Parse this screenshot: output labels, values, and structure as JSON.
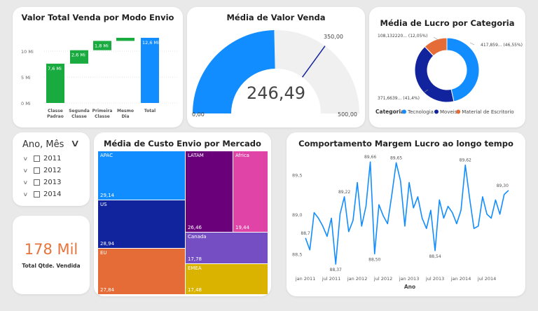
{
  "colors": {
    "blue": "#118dff",
    "green": "#1aab40",
    "gauge_gray": "#f0f0f0",
    "navy": "#12239e",
    "orange": "#e66c37",
    "kpi": "#e8743b"
  },
  "waterfall": {
    "title": "Valor Total Venda por Modo Envio",
    "chart_data": {
      "type": "bar",
      "subtype": "waterfall",
      "categories": [
        [
          "Classe",
          "Padrao"
        ],
        [
          "Segunda",
          "Classe"
        ],
        [
          "Primeira",
          "Classe"
        ],
        [
          "Mesmo",
          "Dia"
        ],
        [
          "Total"
        ]
      ],
      "values": [
        7.6,
        2.6,
        1.8,
        0.6,
        12.6
      ],
      "data_labels": [
        "7,6 Mi",
        "2,6 Mi",
        "1,8 Mi",
        "",
        "12,6 Mi"
      ],
      "y_ticks": [
        "0 Mi",
        "5 Mi",
        "10 Mi"
      ],
      "ylim": [
        0,
        13
      ]
    }
  },
  "gauge": {
    "title": "Média de Valor Venda",
    "value": 246.49,
    "value_label": "246,49",
    "min": 0,
    "max": 500,
    "target": 350,
    "min_label": "0,00",
    "max_label": "500,00",
    "target_label": "350,00"
  },
  "donut": {
    "title": "Média de Lucro por Categoria",
    "legend_title": "Categoria",
    "chart_data": {
      "type": "pie",
      "subtype": "donut",
      "series": [
        {
          "name": "Tecnologia",
          "value": 417859,
          "label": "417,859... (46,55%)",
          "color": "#118dff"
        },
        {
          "name": "Moveis",
          "value": 371663.9,
          "label": "371,6639... (41,4%)",
          "color": "#12239e"
        },
        {
          "name": "Material de Escritorio",
          "value": 108132.2,
          "label": "108,132220... (12,05%)",
          "color": "#e66c37"
        }
      ]
    }
  },
  "slicer": {
    "title": "Ano, Mês",
    "items": [
      "2011",
      "2012",
      "2013",
      "2014"
    ]
  },
  "kpi": {
    "value": "178 Mil",
    "label": "Total Qtde. Vendida"
  },
  "treemap": {
    "title": "Média de Custo Envio por Mercado",
    "chart_data": {
      "type": "heatmap",
      "subtype": "treemap",
      "series": [
        {
          "name": "APAC",
          "value": 29.14,
          "label": "29,14",
          "color": "#118dff"
        },
        {
          "name": "US",
          "value": 28.94,
          "label": "28,94",
          "color": "#12239e"
        },
        {
          "name": "EU",
          "value": 27.84,
          "label": "27,84",
          "color": "#e66c37"
        },
        {
          "name": "LATAM",
          "value": 26.46,
          "label": "26,46",
          "color": "#6b007b"
        },
        {
          "name": "Africa",
          "value": 19.44,
          "label": "19,44",
          "color": "#e044a7"
        },
        {
          "name": "Canada",
          "value": 17.78,
          "label": "17,78",
          "color": "#744ec2"
        },
        {
          "name": "EMEA",
          "value": 17.48,
          "label": "17,48",
          "color": "#d9b300"
        }
      ]
    }
  },
  "line": {
    "title": "Comportamento Margem Lucro ao longo tempo",
    "chart_data": {
      "type": "line",
      "xlabel": "Ano",
      "ylabel": "",
      "x_ticks": [
        "jan 2011",
        "jul 2011",
        "jan 2012",
        "jul 2012",
        "jan 2013",
        "jul 2013",
        "jan 2014",
        "jul 2014"
      ],
      "y_ticks": [
        "88,5",
        "89,0",
        "89,5"
      ],
      "ylim": [
        88.3,
        89.75
      ],
      "x": [
        "2011-01",
        "2011-02",
        "2011-03",
        "2011-04",
        "2011-05",
        "2011-06",
        "2011-07",
        "2011-08",
        "2011-09",
        "2011-10",
        "2011-11",
        "2011-12",
        "2012-01",
        "2012-02",
        "2012-03",
        "2012-04",
        "2012-05",
        "2012-06",
        "2012-07",
        "2012-08",
        "2012-09",
        "2012-10",
        "2012-11",
        "2012-12",
        "2013-01",
        "2013-02",
        "2013-03",
        "2013-04",
        "2013-05",
        "2013-06",
        "2013-07",
        "2013-08",
        "2013-09",
        "2013-10",
        "2013-11",
        "2013-12",
        "2014-01",
        "2014-02",
        "2014-03",
        "2014-04",
        "2014-05",
        "2014-06",
        "2014-07",
        "2014-08",
        "2014-09",
        "2014-10",
        "2014-11",
        "2014-12"
      ],
      "values": [
        88.7,
        88.55,
        89.02,
        88.95,
        88.85,
        88.72,
        88.95,
        88.37,
        89.0,
        89.22,
        88.78,
        88.92,
        89.4,
        88.85,
        89.1,
        89.66,
        88.5,
        89.12,
        88.98,
        88.88,
        89.25,
        89.65,
        89.42,
        88.85,
        89.4,
        89.08,
        89.22,
        88.95,
        88.82,
        89.05,
        88.54,
        89.18,
        88.95,
        89.1,
        89.02,
        88.88,
        89.05,
        89.62,
        89.2,
        88.82,
        88.85,
        89.22,
        89.0,
        88.95,
        89.18,
        89.0,
        89.25,
        89.3
      ],
      "data_labels": [
        {
          "index": 0,
          "text": "88,7"
        },
        {
          "index": 7,
          "text": "88,37"
        },
        {
          "index": 9,
          "text": "89,22"
        },
        {
          "index": 15,
          "text": "89,66"
        },
        {
          "index": 16,
          "text": "88,50"
        },
        {
          "index": 21,
          "text": "89,65"
        },
        {
          "index": 30,
          "text": "88,54"
        },
        {
          "index": 37,
          "text": "89,62"
        },
        {
          "index": 47,
          "text": "89,30"
        }
      ]
    }
  }
}
